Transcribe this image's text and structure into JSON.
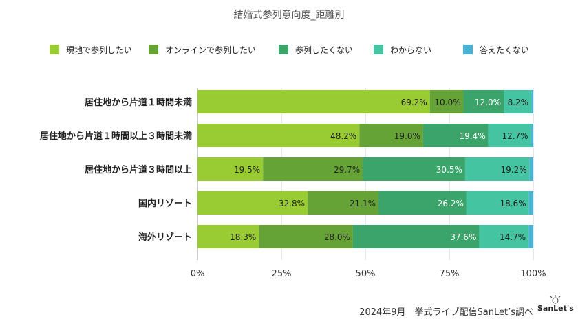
{
  "chart_data": {
    "type": "bar",
    "orientation": "horizontal",
    "stacked": true,
    "title": "結婚式参列意向度_距離別",
    "categories": [
      "居住地から片道１時間未満",
      "居住地から片道１時間以上３時間未満",
      "居住地から片道３時間以上",
      "国内リゾート",
      "海外リゾート"
    ],
    "series": [
      {
        "name": "現地で参列したい",
        "color": "#99cc33",
        "values": [
          69.2,
          48.2,
          19.5,
          32.8,
          18.3
        ]
      },
      {
        "name": "オンラインで参列したい",
        "color": "#66a336",
        "values": [
          10.0,
          19.0,
          29.7,
          21.1,
          28.0
        ]
      },
      {
        "name": "参列したくない",
        "color": "#3aa46a",
        "values": [
          12.0,
          19.4,
          30.5,
          26.2,
          37.6
        ]
      },
      {
        "name": "わからない",
        "color": "#44c4a0",
        "values": [
          8.2,
          12.7,
          19.2,
          18.6,
          14.7
        ]
      },
      {
        "name": "答えたくない",
        "color": "#4ab4d4",
        "values": [
          0.6,
          0.7,
          1.1,
          1.3,
          1.4
        ]
      }
    ],
    "data_labels": [
      [
        "69.2%",
        "10.0%",
        "12.0%",
        "8.2%",
        ""
      ],
      [
        "48.2%",
        "19.0%",
        "19.4%",
        "12.7%",
        ""
      ],
      [
        "19.5%",
        "29.7%",
        "30.5%",
        "19.2%",
        ""
      ],
      [
        "32.8%",
        "21.1%",
        "26.2%",
        "18.6%",
        ""
      ],
      [
        "18.3%",
        "28.0%",
        "37.6%",
        "14.7%",
        ""
      ]
    ],
    "xlim": [
      0,
      100
    ],
    "xticks": [
      "0%",
      "25%",
      "50%",
      "75%",
      "100%"
    ],
    "legend_position": "top",
    "grid": true
  },
  "footer": {
    "source": "2024年9月　挙式ライブ配信SanLet’s調べ",
    "logo": "SanLet's"
  }
}
